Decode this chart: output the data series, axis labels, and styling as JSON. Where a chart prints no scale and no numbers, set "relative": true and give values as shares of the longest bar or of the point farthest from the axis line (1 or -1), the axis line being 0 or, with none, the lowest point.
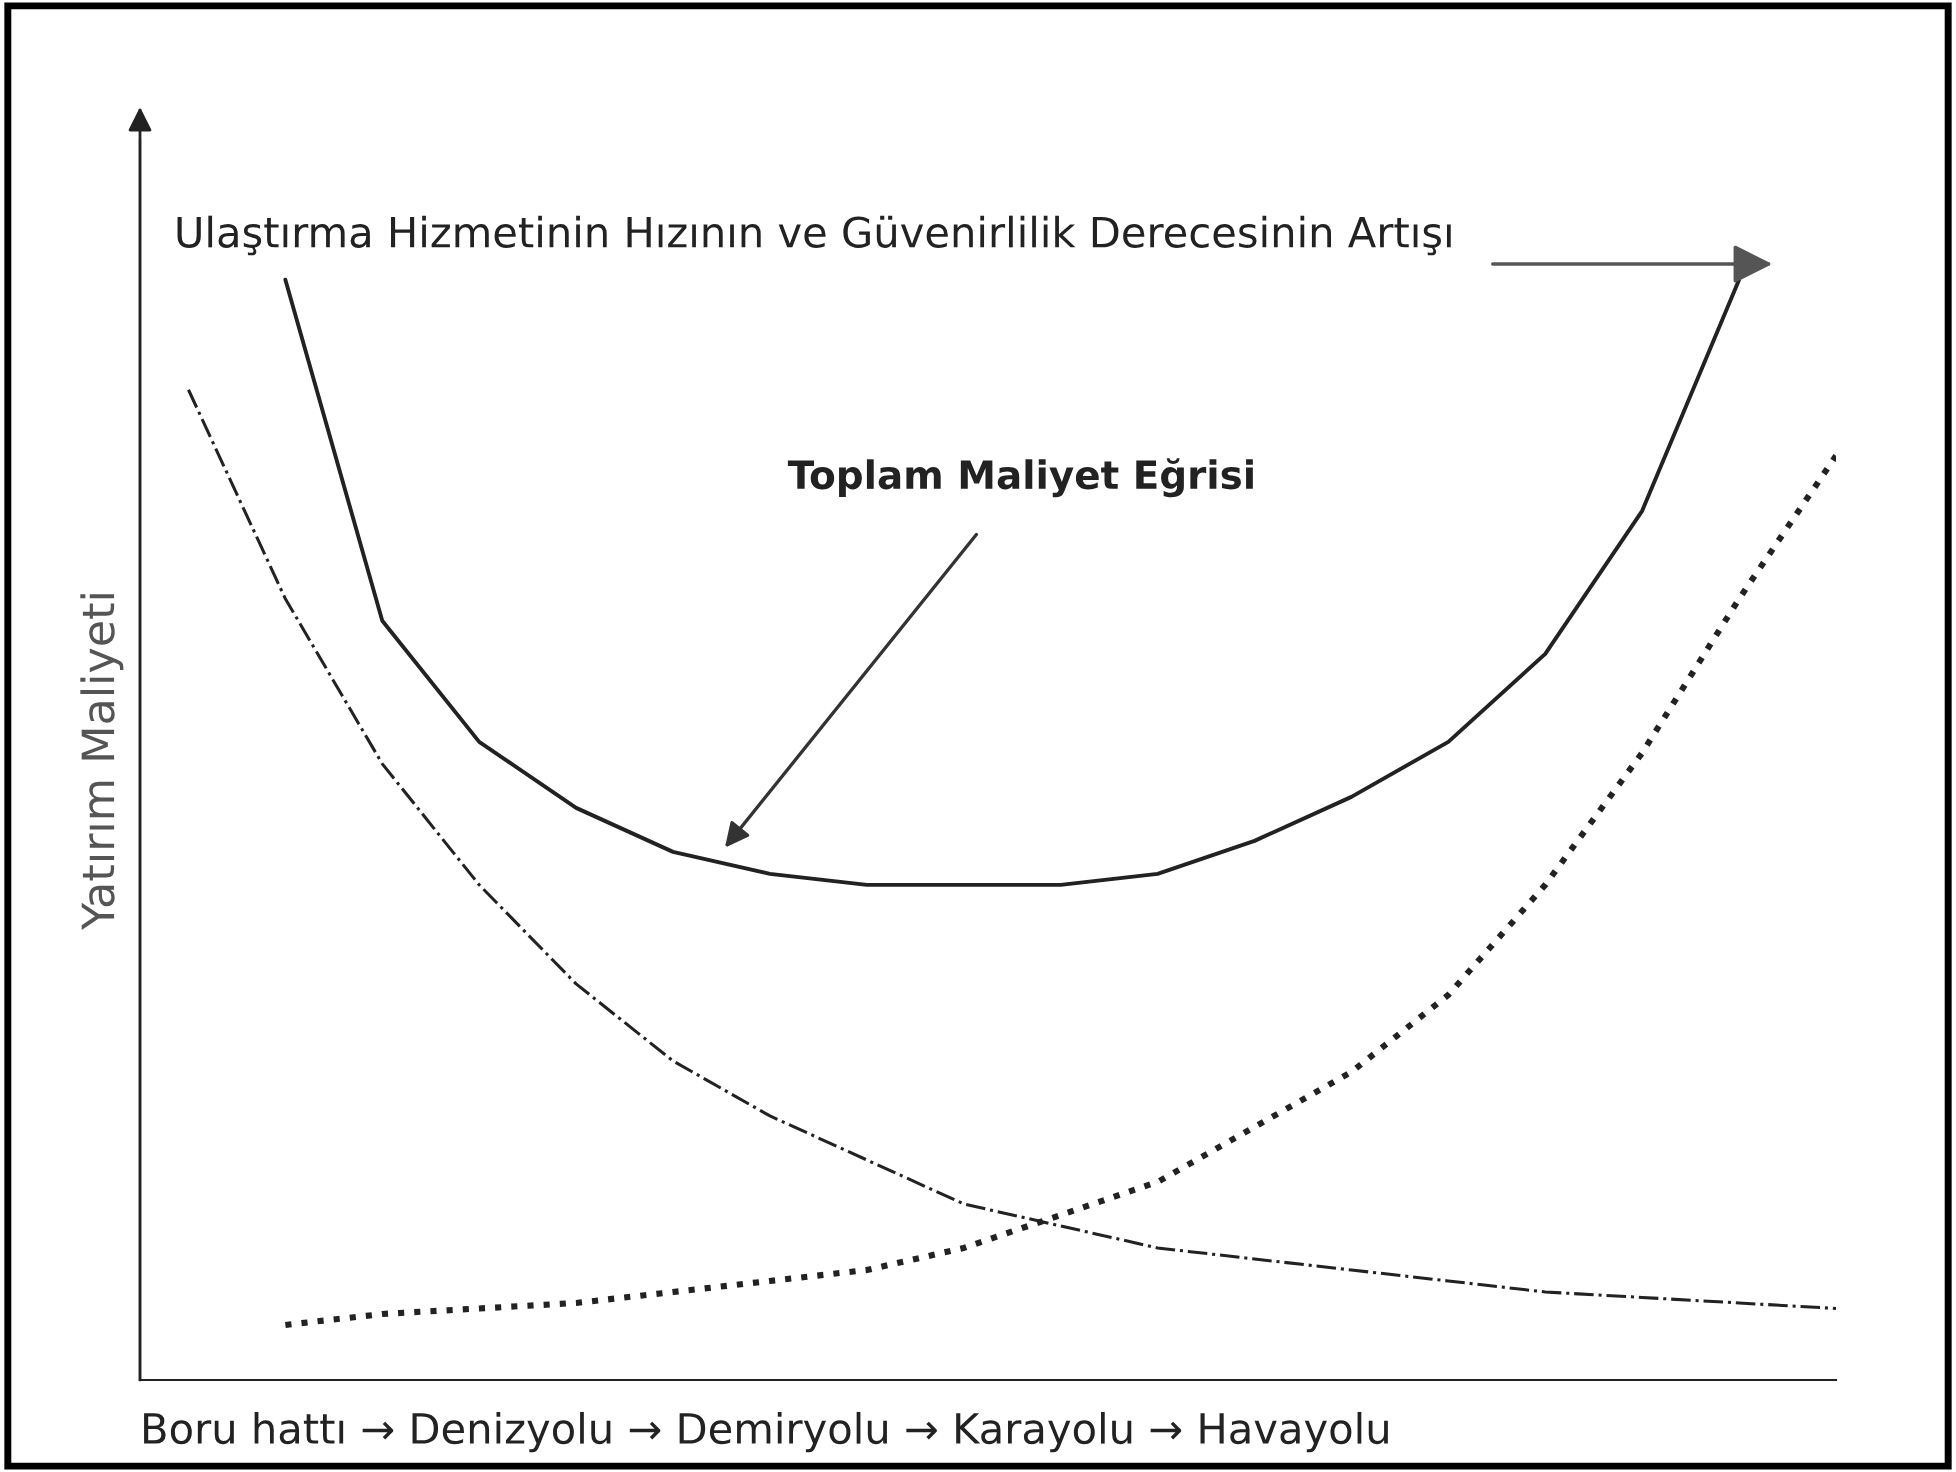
{
  "chart_data": {
    "type": "line",
    "relative": true,
    "title": "Ulaştırma Hizmetinin Hızının ve Güvenirlilik Derecesinin Artışı",
    "xlabel": "Boru hattı → Denizyolu → Demiryolu → Karayolu → Havayolu",
    "ylabel": "Yatırım Maliyeti",
    "annotations": [
      "Toplam Maliyet Eğrisi"
    ],
    "categories": [
      null,
      null,
      null,
      null,
      null,
      null,
      null,
      null,
      null,
      null,
      null,
      null,
      null,
      null,
      null,
      null,
      null,
      null
    ],
    "grid": false,
    "marker": "none",
    "series": [
      {
        "color": "#222222",
        "line_style": "solid",
        "values": [
          null,
          1.0,
          0.69,
          0.58,
          0.52,
          0.48,
          0.46,
          0.45,
          0.45,
          0.45,
          0.46,
          0.49,
          0.53,
          0.58,
          0.66,
          0.79,
          1.0,
          null
        ]
      },
      {
        "color": "#222222",
        "line_style": "dashdot",
        "values": [
          0.9,
          0.71,
          0.56,
          0.45,
          0.36,
          0.29,
          0.24,
          0.2,
          0.16,
          0.14,
          0.12,
          0.11,
          0.1,
          0.09,
          0.08,
          0.075,
          0.07,
          0.065
        ]
      },
      {
        "color": "#222222",
        "line_style": "dotted",
        "values": [
          null,
          0.05,
          0.06,
          0.065,
          0.07,
          0.08,
          0.09,
          0.1,
          0.12,
          0.15,
          0.18,
          0.23,
          0.28,
          0.35,
          0.45,
          0.57,
          0.71,
          0.84
        ]
      }
    ]
  }
}
